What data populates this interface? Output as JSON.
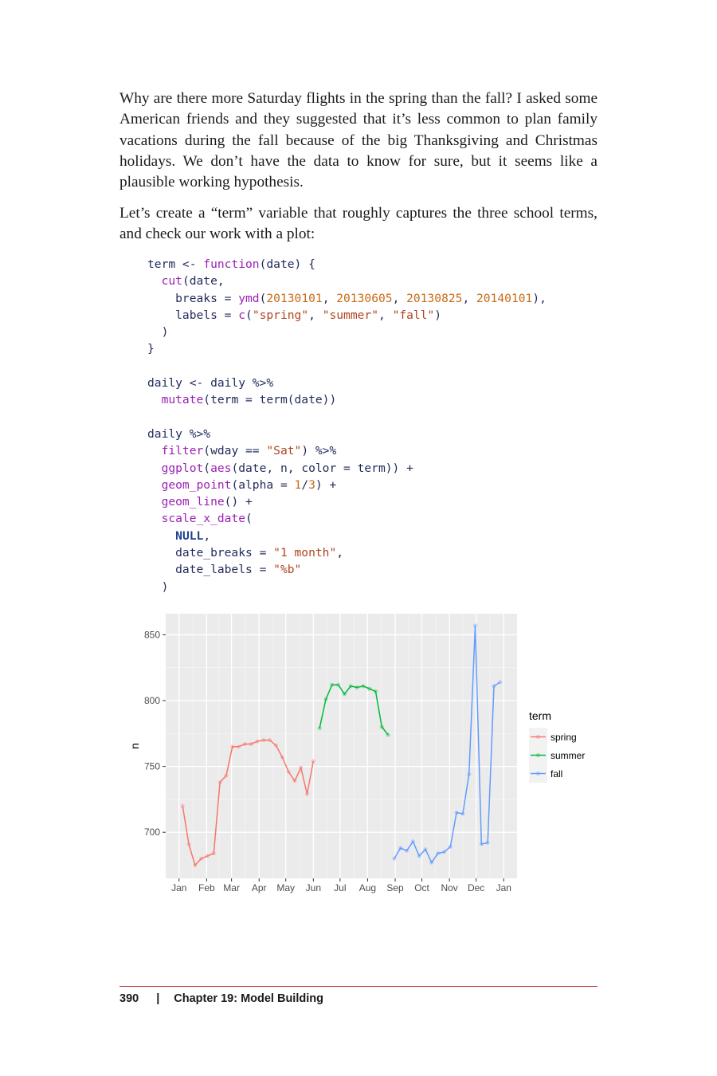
{
  "paragraphs": [
    "Why are there more Saturday flights in the spring than the fall? I asked some American friends and they suggested that it’s less common to plan family vacations during the fall because of the big Thanksgiving and Christmas holidays. We don’t have the data to know for sure, but it seems like a plausible working hypothesis.",
    "Let’s create a “term” variable that roughly captures the three school terms, and check our work with a plot:"
  ],
  "code": [
    "term <- function(date) {",
    "  cut(date,",
    "    breaks = ymd(20130101, 20130605, 20130825, 20140101),",
    "    labels = c(\"spring\", \"summer\", \"fall\")",
    "  )",
    "}",
    "",
    "daily <- daily %>%",
    "  mutate(term = term(date))",
    "",
    "daily %>%",
    "  filter(wday == \"Sat\") %>%",
    "  ggplot(aes(date, n, color = term)) +",
    "  geom_point(alpha = 1/3) +",
    "  geom_line() +",
    "  scale_x_date(",
    "    NULL,",
    "    date_breaks = \"1 month\",",
    "    date_labels = \"%b\"",
    "  )"
  ],
  "chart_data": {
    "type": "line",
    "xlabel": "",
    "ylabel": "n",
    "x_tick_labels": [
      "Jan",
      "Feb",
      "Mar",
      "Apr",
      "May",
      "Jun",
      "Jul",
      "Aug",
      "Sep",
      "Oct",
      "Nov",
      "Dec",
      "Jan"
    ],
    "x_tick_dates": [
      "2013-01-01",
      "2013-02-01",
      "2013-03-01",
      "2013-04-01",
      "2013-05-01",
      "2013-06-01",
      "2013-07-01",
      "2013-08-01",
      "2013-09-01",
      "2013-10-01",
      "2013-11-01",
      "2013-12-01",
      "2014-01-01"
    ],
    "x_range": [
      "2012-12-17",
      "2014-01-16"
    ],
    "y_ticks": [
      700,
      750,
      800,
      850
    ],
    "y_range": [
      665,
      866
    ],
    "legend_title": "term",
    "legend_position": "right",
    "grid": true,
    "series": [
      {
        "name": "spring",
        "color": "#F8766D",
        "x": [
          "2013-01-05",
          "2013-01-12",
          "2013-01-19",
          "2013-01-26",
          "2013-02-02",
          "2013-02-09",
          "2013-02-16",
          "2013-02-23",
          "2013-03-02",
          "2013-03-09",
          "2013-03-16",
          "2013-03-23",
          "2013-03-30",
          "2013-04-06",
          "2013-04-13",
          "2013-04-20",
          "2013-04-27",
          "2013-05-04",
          "2013-05-11",
          "2013-05-18",
          "2013-05-25",
          "2013-06-01"
        ],
        "y": [
          720,
          691,
          675,
          680,
          682,
          684,
          738,
          743,
          765,
          765,
          767,
          767,
          769,
          770,
          770,
          766,
          757,
          746,
          739,
          749,
          729,
          754
        ]
      },
      {
        "name": "summer",
        "color": "#00BA38",
        "x": [
          "2013-06-08",
          "2013-06-15",
          "2013-06-22",
          "2013-06-29",
          "2013-07-06",
          "2013-07-13",
          "2013-07-20",
          "2013-07-27",
          "2013-08-03",
          "2013-08-10",
          "2013-08-17",
          "2013-08-24"
        ],
        "y": [
          779,
          801,
          812,
          812,
          805,
          811,
          810,
          811,
          809,
          807,
          780,
          774
        ]
      },
      {
        "name": "fall",
        "color": "#619CFF",
        "x": [
          "2013-08-31",
          "2013-09-07",
          "2013-09-14",
          "2013-09-21",
          "2013-09-28",
          "2013-10-05",
          "2013-10-12",
          "2013-10-19",
          "2013-10-26",
          "2013-11-02",
          "2013-11-09",
          "2013-11-16",
          "2013-11-23",
          "2013-11-30",
          "2013-12-07",
          "2013-12-14",
          "2013-12-21",
          "2013-12-28"
        ],
        "y": [
          680,
          688,
          686,
          693,
          682,
          687,
          677,
          684,
          685,
          689,
          715,
          714,
          744,
          857,
          691,
          692,
          811,
          814
        ]
      }
    ]
  },
  "footer": {
    "page_number": "390",
    "separator": "|",
    "chapter": "Chapter 19: Model Building"
  }
}
